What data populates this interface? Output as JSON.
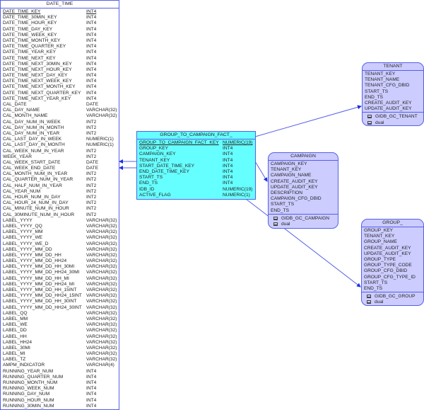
{
  "date_time": {
    "title": "DATE_TIME",
    "columns": [
      [
        "DATE_TIME_KEY",
        "INT4"
      ],
      [
        "DATE_TIME_30MIN_KEY",
        "INT4"
      ],
      [
        "DATE_TIME_HOUR_KEY",
        "INT4"
      ],
      [
        "DATE_TIME_DAY_KEY",
        "INT4"
      ],
      [
        "DATE_TIME_WEEK_KEY",
        "INT4"
      ],
      [
        "DATE_TIME_MONTH_KEY",
        "INT4"
      ],
      [
        "DATE_TIME_QUARTER_KEY",
        "INT4"
      ],
      [
        "DATE_TIME_YEAR_KEY",
        "INT4"
      ],
      [
        "DATE_TIME_NEXT_KEY",
        "INT4"
      ],
      [
        "DATE_TIME_NEXT_30MIN_KEY",
        "INT4"
      ],
      [
        "DATE_TIME_NEXT_HOUR_KEY",
        "INT4"
      ],
      [
        "DATE_TIME_NEXT_DAY_KEY",
        "INT4"
      ],
      [
        "DATE_TIME_NEXT_WEEK_KEY",
        "INT4"
      ],
      [
        "DATE_TIME_NEXT_MONTH_KEY",
        "INT4"
      ],
      [
        "DATE_TIME_NEXT_QUARTER_KEY",
        "INT4"
      ],
      [
        "DATE_TIME_NEXT_YEAR_KEY",
        "INT4"
      ],
      [
        "CAL_DATE",
        "DATE"
      ],
      [
        "CAL_DAY_NAME",
        "VARCHAR(32)"
      ],
      [
        "CAL_MONTH_NAME",
        "VARCHAR(32)"
      ],
      [
        "CAL_DAY_NUM_IN_WEEK",
        "INT2"
      ],
      [
        "CAL_DAY_NUM_IN_MONTH",
        "INT2"
      ],
      [
        "CAL_DAY_NUM_IN_YEAR",
        "INT2"
      ],
      [
        "CAL_LAST_DAY_IN_WEEK",
        "NUMERIC(1)"
      ],
      [
        "CAL_LAST_DAY_IN_MONTH",
        "NUMERIC(1)"
      ],
      [
        "CAL_WEEK_NUM_IN_YEAR",
        "INT2"
      ],
      [
        "WEEK_YEAR",
        "INT2"
      ],
      [
        "CAL_WEEK_START_DATE",
        "DATE"
      ],
      [
        "CAL_WEEK_END_DATE",
        "DATE"
      ],
      [
        "CAL_MONTH_NUM_IN_YEAR",
        "INT2"
      ],
      [
        "CAL_QUARTER_NUM_IN_YEAR",
        "INT2"
      ],
      [
        "CAL_HALF_NUM_IN_YEAR",
        "INT2"
      ],
      [
        "CAL_YEAR_NUM",
        "INT2"
      ],
      [
        "CAL_HOUR_NUM_IN_DAY",
        "INT2"
      ],
      [
        "CAL_HOUR_24_NUM_IN_DAY",
        "INT2"
      ],
      [
        "CAL_MINUTE_NUM_IN_HOUR",
        "INT2"
      ],
      [
        "CAL_30MINUTE_NUM_IN_HOUR",
        "INT2"
      ],
      [
        "LABEL_YYYY",
        "VARCHAR(32)"
      ],
      [
        "LABEL_YYYY_QQ",
        "VARCHAR(32)"
      ],
      [
        "LABEL_YYYY_MM",
        "VARCHAR(32)"
      ],
      [
        "LABEL_YYYY_WE",
        "VARCHAR(32)"
      ],
      [
        "LABEL_YYYY_WE_D",
        "VARCHAR(32)"
      ],
      [
        "LABEL_YYYY_MM_DD",
        "VARCHAR(32)"
      ],
      [
        "LABEL_YYYY_MM_DD_HH",
        "VARCHAR(32)"
      ],
      [
        "LABEL_YYYY_MM_DD_HH24",
        "VARCHAR(32)"
      ],
      [
        "LABEL_YYYY_MM_DD_HH_30MI",
        "VARCHAR(32)"
      ],
      [
        "LABEL_YYYY_MM_DD_HH24_30MI",
        "VARCHAR(32)"
      ],
      [
        "LABEL_YYYY_MM_DD_HH_MI",
        "VARCHAR(32)"
      ],
      [
        "LABEL_YYYY_MM_DD_HH24_MI",
        "VARCHAR(32)"
      ],
      [
        "LABEL_YYYY_MM_DD_HH_15INT",
        "VARCHAR(32)"
      ],
      [
        "LABEL_YYYY_MM_DD_HH24_15INT",
        "VARCHAR(32)"
      ],
      [
        "LABEL_YYYY_MM_DD_HH_30INT",
        "VARCHAR(32)"
      ],
      [
        "LABEL_YYYY_MM_DD_HH24_30INT",
        "VARCHAR(32)"
      ],
      [
        "LABEL_QQ",
        "VARCHAR(32)"
      ],
      [
        "LABEL_MM",
        "VARCHAR(32)"
      ],
      [
        "LABEL_WE",
        "VARCHAR(32)"
      ],
      [
        "LABEL_DD",
        "VARCHAR(32)"
      ],
      [
        "LABEL_HH",
        "VARCHAR(32)"
      ],
      [
        "LABEL_HH24",
        "VARCHAR(32)"
      ],
      [
        "LABEL_30MI",
        "VARCHAR(32)"
      ],
      [
        "LABEL_MI",
        "VARCHAR(32)"
      ],
      [
        "LABEL_TZ",
        "VARCHAR(32)"
      ],
      [
        "AMPM_INDICATOR",
        "VARCHAR(4)"
      ],
      [
        "RUNNING_YEAR_NUM",
        "INT4"
      ],
      [
        "RUNNING_QUARTER_NUM",
        "INT4"
      ],
      [
        "RUNNING_MONTH_NUM",
        "INT4"
      ],
      [
        "RUNNING_WEEK_NUM",
        "INT4"
      ],
      [
        "RUNNING_DAY_NUM",
        "INT4"
      ],
      [
        "RUNNING_HOUR_NUM",
        "INT4"
      ],
      [
        "RUNNING_30MIN_NUM",
        "INT4"
      ]
    ]
  },
  "fact": {
    "title": "GROUP_TO_CAMPAIGN_FACT_",
    "columns": [
      [
        "GROUP_TO_CAMPAIGN_FACT_KEY",
        "NUMERIC(19)"
      ],
      [
        "GROUP_KEY",
        "INT4"
      ],
      [
        "CAMPAIGN_KEY",
        "INT4"
      ],
      [
        "TENANT_KEY",
        "INT4"
      ],
      [
        "START_DATE_TIME_KEY",
        "INT4"
      ],
      [
        "END_DATE_TIME_KEY",
        "INT4"
      ],
      [
        "START_TS",
        "INT4"
      ],
      [
        "END_TS",
        "INT4"
      ],
      [
        "IDB_ID",
        "NUMERIC(19)"
      ],
      [
        "ACTIVE_FLAG",
        "NUMERIC(1)"
      ]
    ]
  },
  "campaign": {
    "title": "CAMPAIGN",
    "columns": [
      "CAMPAIGN_KEY",
      "TENANT_KEY",
      "CAMPAIGN_NAME",
      "CREATE_AUDIT_KEY",
      "UPDATE_AUDIT_KEY",
      "DESCRIPTION",
      "CAMPAIGN_CFG_DBID",
      "START_TS",
      "END_TS"
    ],
    "sources": [
      "GIDB_GC_CAMPAIGN",
      "dual"
    ]
  },
  "tenant": {
    "title": "TENANT",
    "columns": [
      "TENANT_KEY",
      "TENANT_NAME",
      "TENANT_CFG_DBID",
      "START_TS",
      "END_TS",
      "CREATE_AUDIT_KEY",
      "UPDATE_AUDIT_KEY"
    ],
    "sources": [
      "GIDB_GC_TENANT",
      "dual"
    ]
  },
  "group": {
    "title": "GROUP_",
    "columns": [
      "GROUP_KEY",
      "TENANT_KEY",
      "GROUP_NAME",
      "CREATE_AUDIT_KEY",
      "UPDATE_AUDIT_KEY",
      "GROUP_TYPE",
      "GROUP_TYPE_CODE",
      "GROUP_CFG_DBID",
      "GROUP_CFG_TYPE_ID",
      "START_TS",
      "END_TS"
    ],
    "sources": [
      "GIDB_GC_GROUP",
      "dual"
    ]
  },
  "colors": {
    "border": "#5560e8",
    "fact_fill": "#66ffff",
    "entity_fill": "#ccccff",
    "line": "#5560e8"
  }
}
